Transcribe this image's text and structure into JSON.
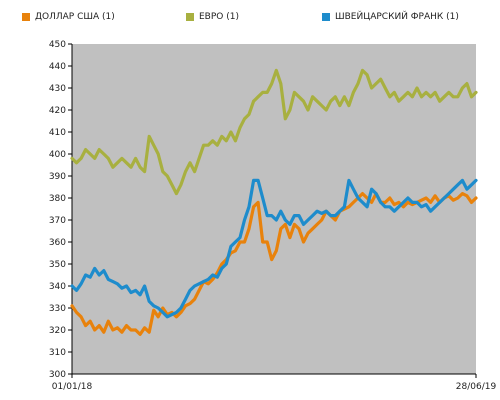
{
  "chart_data": {
    "type": "line",
    "x_start_label": "01/01/18",
    "x_end_label": "28/06/19",
    "ylim": [
      300,
      450
    ],
    "yticks": [
      300,
      310,
      320,
      330,
      340,
      350,
      360,
      370,
      380,
      390,
      400,
      410,
      420,
      430,
      440,
      450
    ],
    "grid": false,
    "legend_position": "top",
    "background_color": "#c0c0c0",
    "series": [
      {
        "name": "ДОЛЛАР США (1)",
        "color": "#e8820c",
        "values": [
          331,
          328,
          326,
          322,
          324,
          320,
          322,
          319,
          324,
          320,
          321,
          319,
          322,
          320,
          320,
          318,
          321,
          319,
          329,
          326,
          330,
          327,
          328,
          326,
          328,
          331,
          332,
          334,
          338,
          342,
          341,
          343,
          346,
          350,
          352,
          355,
          356,
          360,
          360,
          366,
          376,
          378,
          360,
          360,
          352,
          356,
          366,
          368,
          362,
          368,
          366,
          360,
          364,
          366,
          368,
          370,
          374,
          372,
          370,
          374,
          375,
          376,
          378,
          380,
          382,
          380,
          378,
          382,
          378,
          378,
          380,
          377,
          378,
          376,
          378,
          377,
          378,
          379,
          380,
          378,
          381,
          378,
          380,
          381,
          379,
          380,
          382,
          381,
          378,
          380
        ]
      },
      {
        "name": "ЕВРО (1)",
        "color": "#a8b040",
        "values": [
          398,
          396,
          398,
          402,
          400,
          398,
          402,
          400,
          398,
          394,
          396,
          398,
          396,
          394,
          398,
          394,
          392,
          408,
          404,
          400,
          392,
          390,
          386,
          382,
          386,
          392,
          396,
          392,
          398,
          404,
          404,
          406,
          404,
          408,
          406,
          410,
          406,
          412,
          416,
          418,
          424,
          426,
          428,
          428,
          432,
          438,
          432,
          416,
          420,
          428,
          426,
          424,
          420,
          426,
          424,
          422,
          420,
          424,
          426,
          422,
          426,
          422,
          428,
          432,
          438,
          436,
          430,
          432,
          434,
          430,
          426,
          428,
          424,
          426,
          428,
          426,
          430,
          426,
          428,
          426,
          428,
          424,
          426,
          428,
          426,
          426,
          430,
          432,
          426,
          428
        ]
      },
      {
        "name": "ШВЕЙЦАРСКИЙ ФРАНК (1)",
        "color": "#1e8ccc",
        "values": [
          340,
          338,
          341,
          345,
          344,
          348,
          345,
          347,
          343,
          342,
          341,
          339,
          340,
          337,
          338,
          336,
          340,
          333,
          331,
          330,
          328,
          326,
          327,
          328,
          330,
          334,
          338,
          340,
          341,
          342,
          343,
          345,
          344,
          348,
          350,
          358,
          360,
          362,
          370,
          376,
          388,
          388,
          380,
          372,
          372,
          370,
          374,
          370,
          368,
          372,
          372,
          368,
          370,
          372,
          374,
          373,
          374,
          372,
          372,
          374,
          376,
          388,
          384,
          380,
          378,
          376,
          384,
          382,
          378,
          376,
          376,
          374,
          376,
          378,
          380,
          378,
          378,
          376,
          377,
          374,
          376,
          378,
          380,
          382,
          384,
          386,
          388,
          384,
          386,
          388
        ]
      }
    ]
  }
}
